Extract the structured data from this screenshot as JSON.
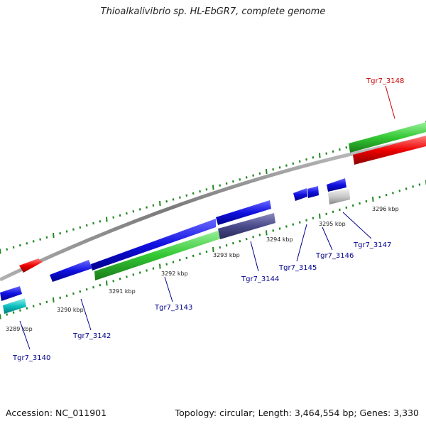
{
  "map": {
    "title": "Thioalkalivibrio sp. HL-EbGR7, complete genome",
    "accession": "Accession: NC_011901",
    "summary": "Topology: circular; Length: 3,464,554 bp; Genes: 3,330"
  },
  "colors": {
    "cds_forward": "#0000ee",
    "cds_reverse": "#0000ee",
    "gene_track": "#33cc33",
    "rna_red": "#ee0000",
    "cyan": "#00c8c8",
    "grey": "#bbbbbb",
    "purple": "#4b4b8f",
    "label": "#00008b",
    "label_red": "#cc0000",
    "dots": "#228822",
    "backbone": "#888888"
  },
  "scale_labels": [
    "3289 kbp",
    "3290 kbp",
    "3291 kbp",
    "3292 kbp",
    "3293 kbp",
    "3294 kbp",
    "3295 kbp",
    "3296 kbp"
  ],
  "gene_labels": [
    {
      "name": "Tgr7_3140",
      "color": "label"
    },
    {
      "name": "Tgr7_3142",
      "color": "label"
    },
    {
      "name": "Tgr7_3143",
      "color": "label"
    },
    {
      "name": "Tgr7_3144",
      "color": "label"
    },
    {
      "name": "Tgr7_3145",
      "color": "label"
    },
    {
      "name": "Tgr7_3146",
      "color": "label"
    },
    {
      "name": "Tgr7_3147",
      "color": "label"
    },
    {
      "name": "Tgr7_3148",
      "color": "label_red"
    }
  ]
}
